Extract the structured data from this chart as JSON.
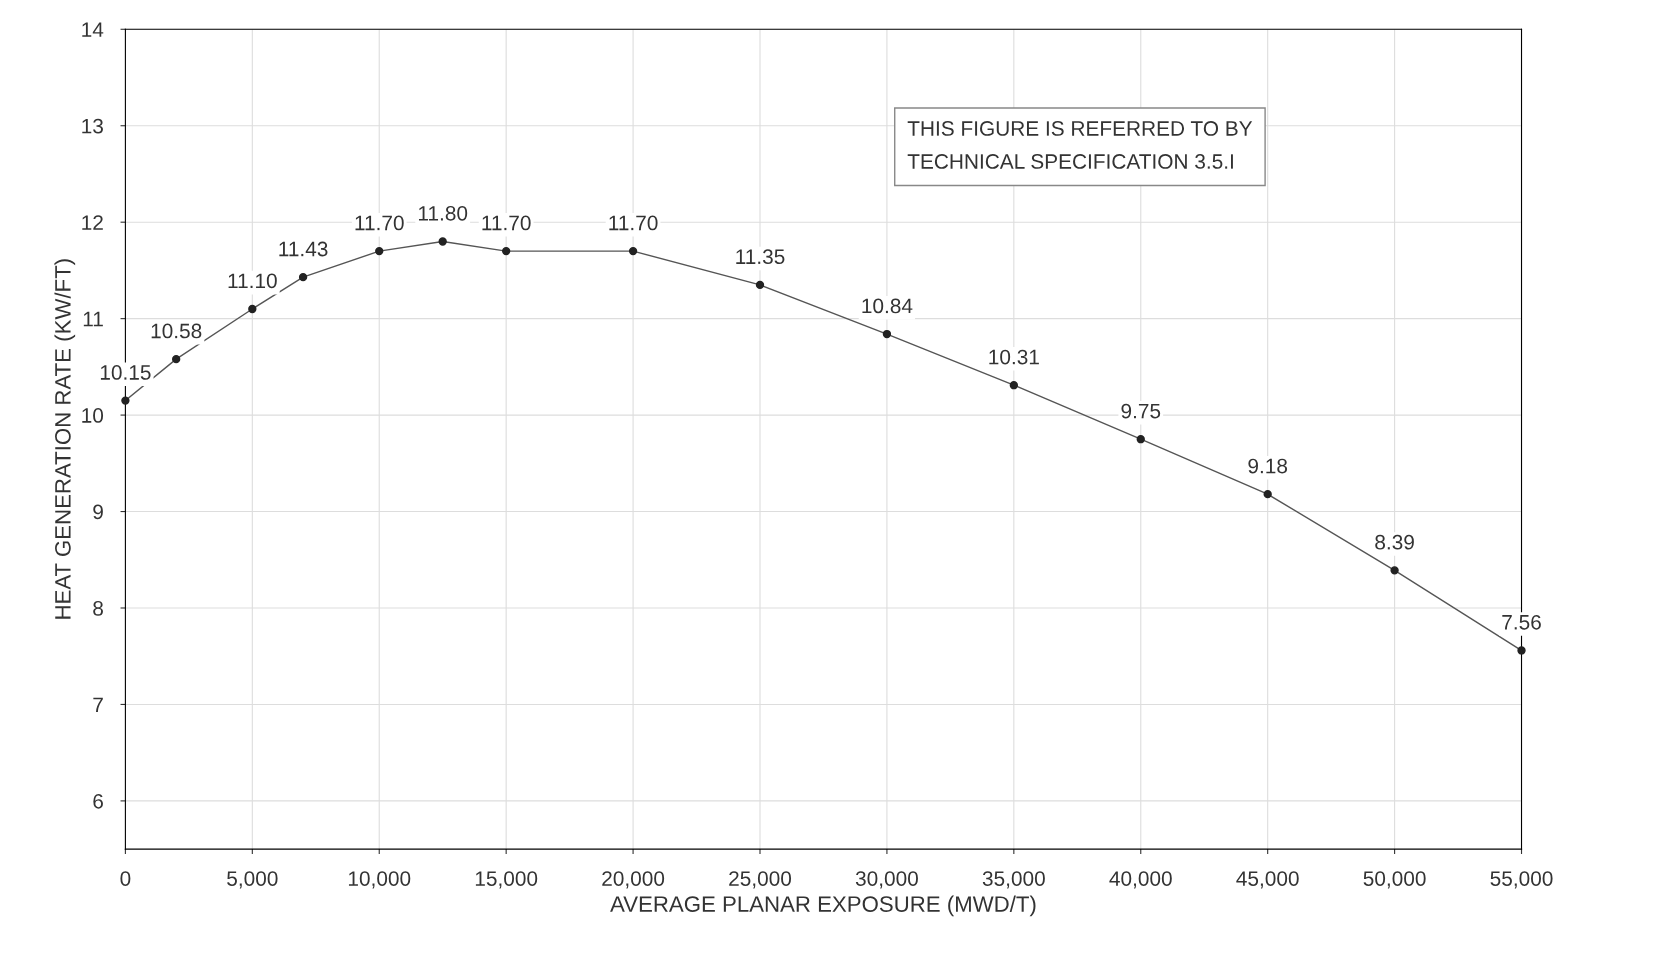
{
  "chart_data": {
    "type": "line",
    "xlabel": "AVERAGE PLANAR EXPOSURE (MWD/T)",
    "ylabel": "HEAT GENERATION RATE (KW/FT)",
    "x": [
      0,
      2000,
      5000,
      7000,
      10000,
      12500,
      15000,
      20000,
      25000,
      30000,
      35000,
      40000,
      45000,
      50000,
      55000
    ],
    "values": [
      10.15,
      10.58,
      11.1,
      11.43,
      11.7,
      11.8,
      11.7,
      11.7,
      11.35,
      10.84,
      10.31,
      9.75,
      9.18,
      8.39,
      7.56
    ],
    "value_labels": [
      "10.15",
      "10.58",
      "11.10",
      "11.43",
      "11.70",
      "11.80",
      "11.70",
      "11.70",
      "11.35",
      "10.84",
      "10.31",
      "9.75",
      "9.18",
      "8.39",
      "7.56"
    ],
    "color": "#555555",
    "marker": "circle",
    "line_style": "solid",
    "grid": true,
    "xlim": [
      0,
      55000
    ],
    "ylim": [
      5.5,
      14
    ],
    "xticks": [
      0,
      {
        "value": 5000,
        "label": "5,000"
      },
      {
        "value": 10000,
        "label": "10,000"
      },
      {
        "value": 15000,
        "label": "15,000"
      },
      {
        "value": 20000,
        "label": "20,000"
      },
      {
        "value": 25000,
        "label": "25,000"
      },
      {
        "value": 30000,
        "label": "30,000"
      },
      {
        "value": 35000,
        "label": "35,000"
      },
      {
        "value": 40000,
        "label": "40,000"
      },
      {
        "value": 45000,
        "label": "45,000"
      },
      {
        "value": 50000,
        "label": "50,000"
      },
      {
        "value": 55000,
        "label": "55,000"
      }
    ],
    "yticks": [
      6,
      7,
      8,
      9,
      10,
      11,
      12,
      13,
      14
    ],
    "annotations": [
      "THIS FIGURE IS REFERRED TO BY\nTECHNICAL SPECIFICATION 3.5.I"
    ]
  }
}
